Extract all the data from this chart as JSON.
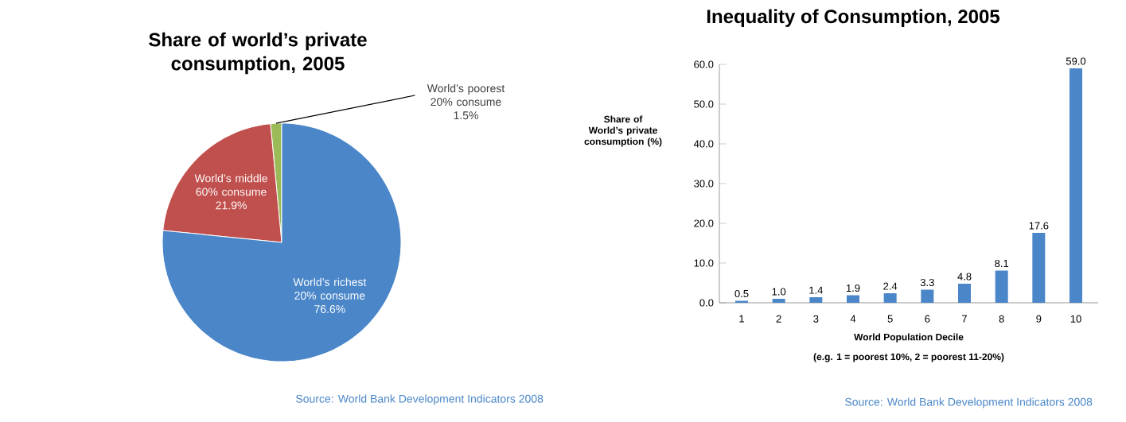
{
  "chart_data": [
    {
      "type": "pie",
      "title": "Share of world’s private consumption, 2005",
      "categories": [
        "World’s poorest 20% consume",
        "World’s middle 60% consume",
        "World’s richest 20% consume"
      ],
      "values": [
        1.5,
        21.9,
        76.6
      ],
      "value_labels": [
        "1.5%",
        "21.9%",
        "76.6%"
      ],
      "colors": [
        "#9bbb59",
        "#c0504d",
        "#4a86c8"
      ],
      "annotations": [
        "Source: World Bank Development Indicators 2008"
      ]
    },
    {
      "type": "bar",
      "title": "Inequality of Consumption, 2005",
      "xlabel": "World Population Decile",
      "ylabel": "Share of World’s private consumption (%)",
      "categories": [
        "1",
        "2",
        "3",
        "4",
        "5",
        "6",
        "7",
        "8",
        "9",
        "10"
      ],
      "values": [
        0.5,
        1.0,
        1.4,
        1.9,
        2.4,
        3.3,
        4.8,
        8.1,
        17.6,
        59.0
      ],
      "value_labels": [
        "0.5",
        "1.0",
        "1.4",
        "1.9",
        "2.4",
        "3.3",
        "4.8",
        "8.1",
        "17.6",
        "59.0"
      ],
      "color": "#4a86c8",
      "ylim": [
        0,
        60
      ],
      "yticks": [
        {
          "value": 0,
          "label": "0.0"
        },
        {
          "value": 10,
          "label": "10.0"
        },
        {
          "value": 20,
          "label": "20.0"
        },
        {
          "value": 30,
          "label": "30.0"
        },
        {
          "value": 40,
          "label": "40.0"
        },
        {
          "value": 50,
          "label": "50.0"
        },
        {
          "value": 60,
          "label": "60.0"
        }
      ],
      "annotations": [
        "(e.g. 1 = poorest 10%, 2 = poorest 11-20%)",
        "Source: World Bank Development Indicators 2008"
      ]
    }
  ]
}
